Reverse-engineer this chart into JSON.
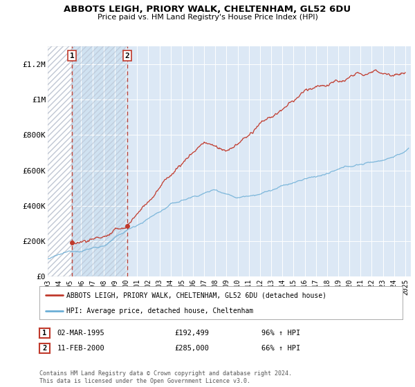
{
  "title": "ABBOTS LEIGH, PRIORY WALK, CHELTENHAM, GL52 6DU",
  "subtitle": "Price paid vs. HM Land Registry's House Price Index (HPI)",
  "ylabel_ticks": [
    "£0",
    "£200K",
    "£400K",
    "£600K",
    "£800K",
    "£1M",
    "£1.2M"
  ],
  "ytick_vals": [
    0,
    200000,
    400000,
    600000,
    800000,
    1000000,
    1200000
  ],
  "ylim": [
    0,
    1300000
  ],
  "xlim_start": 1993.0,
  "xlim_end": 2025.5,
  "xticks": [
    1993,
    1994,
    1995,
    1996,
    1997,
    1998,
    1999,
    2000,
    2001,
    2002,
    2003,
    2004,
    2005,
    2006,
    2007,
    2008,
    2009,
    2010,
    2011,
    2012,
    2013,
    2014,
    2015,
    2016,
    2017,
    2018,
    2019,
    2020,
    2021,
    2022,
    2023,
    2024,
    2025
  ],
  "hpi_color": "#6baed6",
  "price_color": "#c0392b",
  "sale1_x": 1995.17,
  "sale1_y": 192499,
  "sale2_x": 2000.12,
  "sale2_y": 285000,
  "legend_line1": "ABBOTS LEIGH, PRIORY WALK, CHELTENHAM, GL52 6DU (detached house)",
  "legend_line2": "HPI: Average price, detached house, Cheltenham",
  "table_row1": [
    "1",
    "02-MAR-1995",
    "£192,499",
    "96% ↑ HPI"
  ],
  "table_row2": [
    "2",
    "11-FEB-2000",
    "£285,000",
    "66% ↑ HPI"
  ],
  "footer": "Contains HM Land Registry data © Crown copyright and database right 2024.\nThis data is licensed under the Open Government Licence v3.0.",
  "background_color": "#ffffff",
  "plot_bg_color": "#dce8f5",
  "hatch_color": "#b0b8c8",
  "grid_color": "#ffffff"
}
